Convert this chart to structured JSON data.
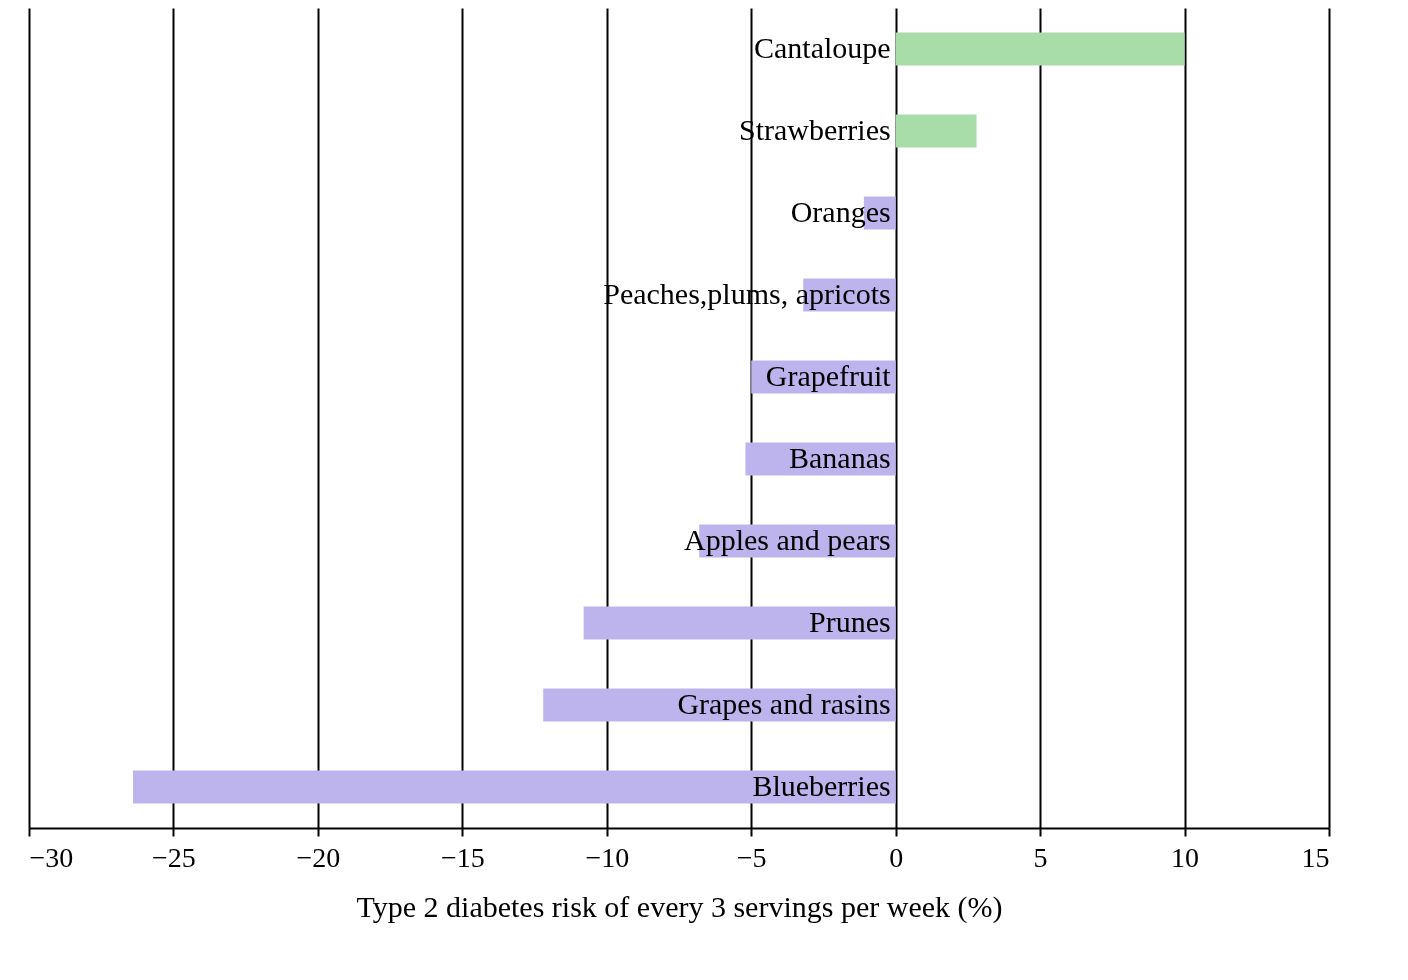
{
  "chart_data": {
    "type": "bar",
    "orientation": "horizontal",
    "xlabel": "Type 2 diabetes risk of every 3 servings per week (%)",
    "categories": [
      "Cantaloupe",
      "Strawberries",
      "Oranges",
      "Peaches,plums, apricots",
      "Grapefruit",
      "Bananas",
      "Apples and pears",
      "Prunes",
      "Grapes and rasins",
      "Blueberries"
    ],
    "values": [
      10,
      2.8,
      -1.1,
      -3.2,
      -5,
      -5.2,
      -6.8,
      -10.8,
      -12.2,
      -26.4
    ],
    "colors": [
      "#a8dca8",
      "#a8dca8",
      "#bdb4ee",
      "#bdb4ee",
      "#bdb4ee",
      "#bdb4ee",
      "#bdb4ee",
      "#bdb4ee",
      "#bdb4ee",
      "#bdb4ee"
    ],
    "xlim": [
      -30,
      15
    ],
    "xticks": [
      -30,
      -25,
      -20,
      -15,
      -10,
      -5,
      0,
      5,
      10,
      15
    ],
    "grid": "x"
  }
}
